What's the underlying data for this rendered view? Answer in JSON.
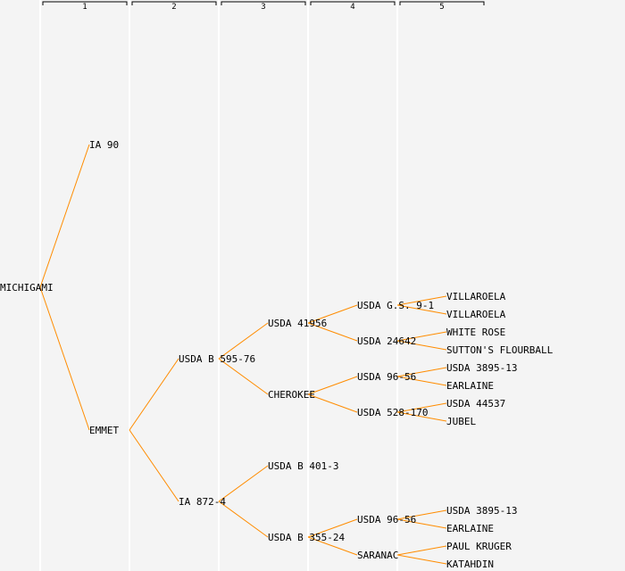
{
  "generation_headers": [
    "1",
    "2",
    "3",
    "4",
    "5"
  ],
  "colors": {
    "edge": "#ff8c00",
    "background": "#f4f4f4",
    "separator": "#ffffff",
    "text": "#000000"
  },
  "tree": {
    "name": "MICHIGAMI",
    "children": [
      {
        "name": "IA 90"
      },
      {
        "name": "EMMET",
        "children": [
          {
            "name": "USDA B 595-76",
            "children": [
              {
                "name": "USDA 41956",
                "children": [
                  {
                    "name": "USDA G.S. 9-1",
                    "children": [
                      {
                        "name": "VILLAROELA"
                      },
                      {
                        "name": "VILLAROELA"
                      }
                    ]
                  },
                  {
                    "name": "USDA 24642",
                    "children": [
                      {
                        "name": "WHITE ROSE"
                      },
                      {
                        "name": "SUTTON'S FLOURBALL"
                      }
                    ]
                  }
                ]
              },
              {
                "name": "CHEROKEE",
                "children": [
                  {
                    "name": "USDA 96-56",
                    "children": [
                      {
                        "name": "USDA 3895-13"
                      },
                      {
                        "name": "EARLAINE"
                      }
                    ]
                  },
                  {
                    "name": "USDA 528-170",
                    "children": [
                      {
                        "name": "USDA 44537"
                      },
                      {
                        "name": "JUBEL"
                      }
                    ]
                  }
                ]
              }
            ]
          },
          {
            "name": "IA 872-4",
            "children": [
              {
                "name": "USDA B 401-3"
              },
              {
                "name": "USDA B 355-24",
                "children": [
                  {
                    "name": "USDA 96-56",
                    "children": [
                      {
                        "name": "USDA 3895-13"
                      },
                      {
                        "name": "EARLAINE"
                      }
                    ]
                  },
                  {
                    "name": "SARANAC",
                    "children": [
                      {
                        "name": "PAUL KRUGER"
                      },
                      {
                        "name": "KATAHDIN"
                      }
                    ]
                  }
                ]
              }
            ]
          }
        ]
      }
    ]
  }
}
